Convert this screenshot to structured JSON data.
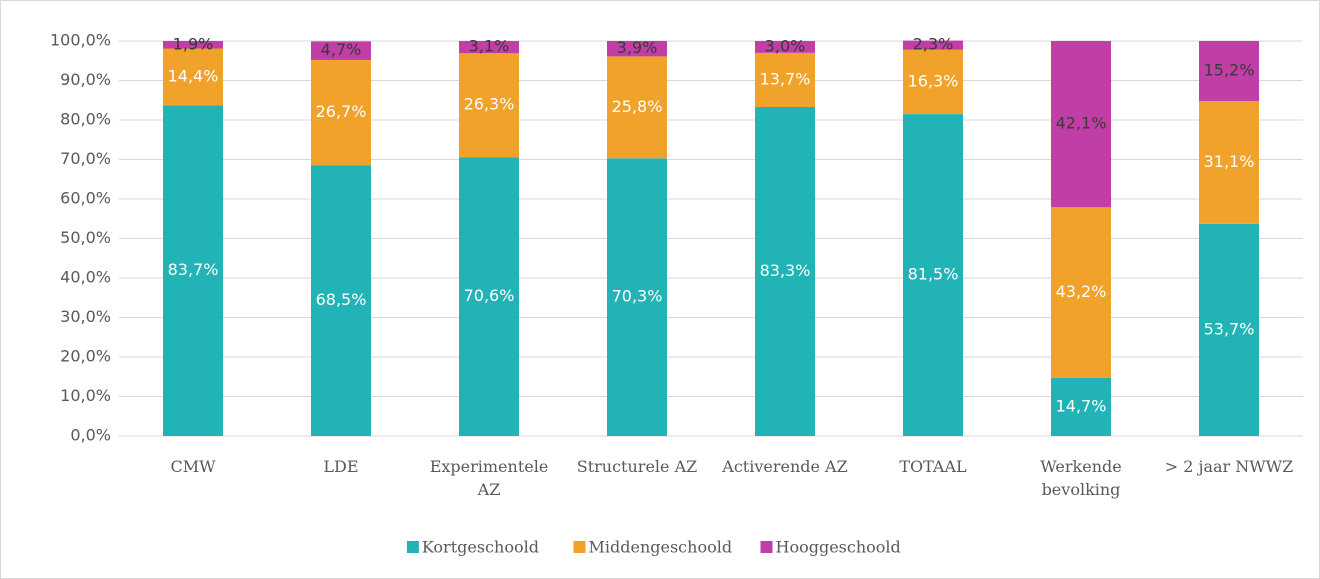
{
  "chart_data": {
    "type": "stacked_bar",
    "categories": [
      "CMW",
      "LDE",
      "Experimentele AZ",
      "Structurele AZ",
      "Activerende AZ",
      "TOTAAL",
      "Werkende bevolking",
      "> 2 jaar NWWZ"
    ],
    "series": [
      {
        "name": "Kortgeschoold",
        "color": "#22b3b6",
        "values": [
          83.7,
          68.5,
          70.6,
          70.3,
          83.3,
          81.5,
          14.7,
          53.7
        ],
        "value_labels": [
          "83,7%",
          "68,5%",
          "70,6%",
          "70,3%",
          "83,3%",
          "81,5%",
          "14,7%",
          "53,7%"
        ]
      },
      {
        "name": "Middengeschoold",
        "color": "#f0a22a",
        "values": [
          14.4,
          26.7,
          26.3,
          25.8,
          13.7,
          16.3,
          43.2,
          31.1
        ],
        "value_labels": [
          "14,4%",
          "26,7%",
          "26,3%",
          "25,8%",
          "13,7%",
          "16,3%",
          "43,2%",
          "31,1%"
        ]
      },
      {
        "name": "Hooggeschoold",
        "color": "#c03ea6",
        "values": [
          1.9,
          4.7,
          3.1,
          3.9,
          3.0,
          2.3,
          42.1,
          15.2
        ],
        "value_labels": [
          "1,9%",
          "4,7%",
          "3,1%",
          "3,9%",
          "3,0%",
          "2,3%",
          "42,1%",
          "15,2%"
        ]
      }
    ],
    "ylim": [
      0,
      100
    ],
    "yticks": [
      {
        "value": 0,
        "label": "0,0%"
      },
      {
        "value": 10,
        "label": "10,0%"
      },
      {
        "value": 20,
        "label": "20,0%"
      },
      {
        "value": 30,
        "label": "30,0%"
      },
      {
        "value": 40,
        "label": "40,0%"
      },
      {
        "value": 50,
        "label": "50,0%"
      },
      {
        "value": 60,
        "label": "60,0%"
      },
      {
        "value": 70,
        "label": "70,0%"
      },
      {
        "value": 80,
        "label": "80,0%"
      },
      {
        "value": 90,
        "label": "90,0%"
      },
      {
        "value": 100,
        "label": "100,0%"
      }
    ],
    "grid": true,
    "legend": "bottom"
  }
}
